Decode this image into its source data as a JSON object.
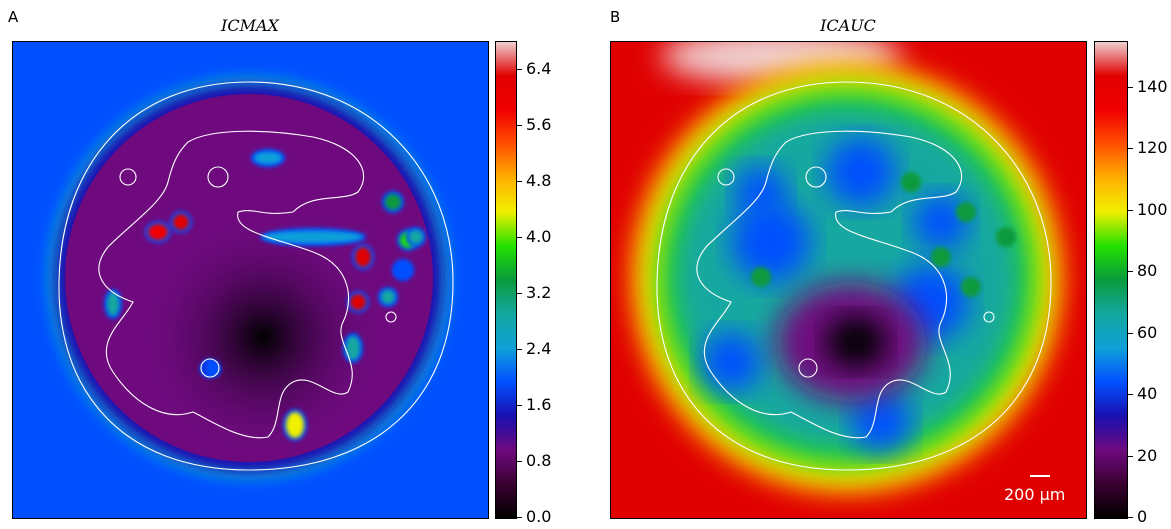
{
  "colormap": [
    "#000000",
    "#3a0030",
    "#6e0a7e",
    "#1a10b0",
    "#0050ff",
    "#10a0d8",
    "#14a8a0",
    "#0a9a3c",
    "#22e000",
    "#f0f000",
    "#ffb000",
    "#ff5000",
    "#f00000",
    "#e00000",
    "#f0d0d0"
  ],
  "chart_data": [
    {
      "type": "heatmap",
      "panel_label": "A",
      "title": "ICMAX",
      "colorbar": {
        "min": 0.0,
        "max": 6.8,
        "ticks": [
          "0.0",
          "0.8",
          "1.6",
          "2.4",
          "3.2",
          "4.0",
          "4.8",
          "5.6",
          "6.4"
        ]
      },
      "levels": {
        "background": 1.9,
        "rim": 2.6,
        "interior": 0.6,
        "center_min": 0.05
      },
      "hot_spots": [
        2.6,
        3.4,
        3.8,
        2.9,
        1.8,
        5.6,
        6.2,
        6.4,
        6.2,
        2.9,
        3.1,
        1.7,
        3.1,
        1.6,
        1.7,
        4.6,
        2.4
      ]
    },
    {
      "type": "heatmap",
      "panel_label": "B",
      "title": "ICAUC",
      "colorbar": {
        "min": 0,
        "max": 155,
        "ticks": [
          "0",
          "20",
          "40",
          "60",
          "80",
          "100",
          "120",
          "140"
        ]
      },
      "levels": {
        "background": 140,
        "rim": 85,
        "interior": 45,
        "center_min": 3
      },
      "scale_bar": "200 µm"
    }
  ]
}
